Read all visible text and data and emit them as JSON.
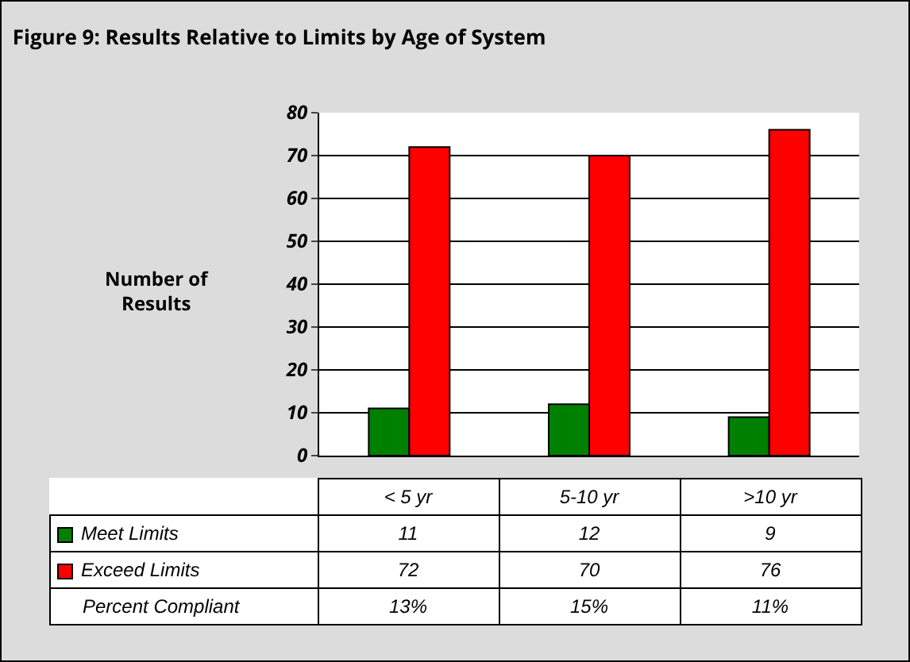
{
  "chart_data": {
    "type": "bar",
    "title": "Figure 9: Results Relative to Limits by Age of System",
    "ylabel": "Number of Results",
    "categories": [
      "< 5 yr",
      "5-10 yr",
      ">10 yr"
    ],
    "series": [
      {
        "name": "Meet Limits",
        "color": "#008000",
        "values": [
          11,
          12,
          9
        ]
      },
      {
        "name": "Exceed Limits",
        "color": "#ff0000",
        "values": [
          72,
          70,
          76
        ]
      }
    ],
    "ylim": [
      0,
      80
    ],
    "yticks": [
      0,
      10,
      20,
      30,
      40,
      50,
      60,
      70,
      80
    ],
    "grid": "y",
    "legend": "bottom",
    "data_labels": true,
    "tick_labels": "y",
    "annotations": [
      "Percent Compliant",
      "13%",
      "15%",
      "11%"
    ]
  }
}
